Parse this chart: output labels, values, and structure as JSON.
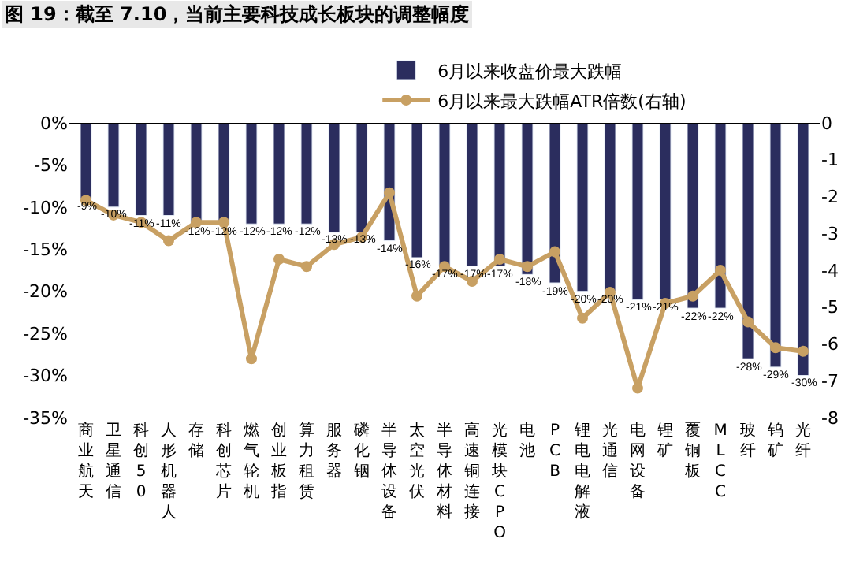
{
  "chart_data": {
    "type": "bar",
    "title": "图 19：截至 7.10，当前主要科技成长板块的调整幅度",
    "categories": [
      "商业航天",
      "卫星通信",
      "科创50",
      "人形机器人",
      "存储",
      "科创芯片",
      "燃气轮机",
      "创业板指",
      "算力租赁",
      "服务器",
      "磷化铟",
      "半导体设备",
      "太空光伏",
      "半导体材料",
      "高速铜连接",
      "光模块CPO",
      "电池",
      "PCB",
      "锂电电解液",
      "光通信",
      "电网设备",
      "锂矿",
      "覆铜板",
      "MLCC",
      "玻纤",
      "钨矿",
      "光纤"
    ],
    "series": [
      {
        "name": "6月以来收盘价最大跌幅",
        "color": "#2b2d5e",
        "values": [
          -9,
          -10,
          -11,
          -11,
          -12,
          -12,
          -12,
          -12,
          -12,
          -13,
          -13,
          -14,
          -16,
          -17,
          -17,
          -17,
          -18,
          -19,
          -20,
          -20,
          -21,
          -21,
          -22,
          -22,
          -28,
          -29,
          -30
        ]
      },
      {
        "name": "6月以来最大跌幅ATR倍数(右轴)",
        "color": "#c8a063",
        "type": "line",
        "axis": "y2",
        "marker": "circle",
        "values": [
          -2.1,
          -2.5,
          -2.7,
          -3.2,
          -2.7,
          -2.7,
          -6.4,
          -3.7,
          -3.9,
          -3.3,
          -3.1,
          -1.9,
          -4.7,
          -3.9,
          -4.3,
          -3.7,
          -3.9,
          -3.5,
          -5.3,
          -4.6,
          -7.2,
          -4.9,
          -4.7,
          -4.0,
          -5.4,
          -6.1,
          -6.2
        ]
      }
    ],
    "ylim": [
      -35,
      0
    ],
    "yticks": [
      {
        "value": 0,
        "label": "0%"
      },
      {
        "value": -5,
        "label": "-5%"
      },
      {
        "value": -10,
        "label": "-10%"
      },
      {
        "value": -15,
        "label": "-15%"
      },
      {
        "value": -20,
        "label": "-20%"
      },
      {
        "value": -25,
        "label": "-25%"
      },
      {
        "value": -30,
        "label": "-30%"
      },
      {
        "value": -35,
        "label": "-35%"
      }
    ],
    "y2lim": [
      -8,
      0
    ],
    "y2ticks": [
      0,
      -1,
      -2,
      -3,
      -4,
      -5,
      -6,
      -7,
      -8
    ],
    "value_labels": [
      "-9%",
      "-10%",
      "-11%",
      "-11%",
      "-12%",
      "-12%",
      "-12%",
      "-12%",
      "-12%",
      "-13%",
      "-13%",
      "-14%",
      "-16%",
      "-17%",
      "-17%",
      "-17%",
      "-18%",
      "-19%",
      "-20%",
      "-20%",
      "-21%",
      "-21%",
      "-22%",
      "-22%",
      "-28%",
      "-29%",
      "-30%"
    ],
    "legend": "top"
  }
}
